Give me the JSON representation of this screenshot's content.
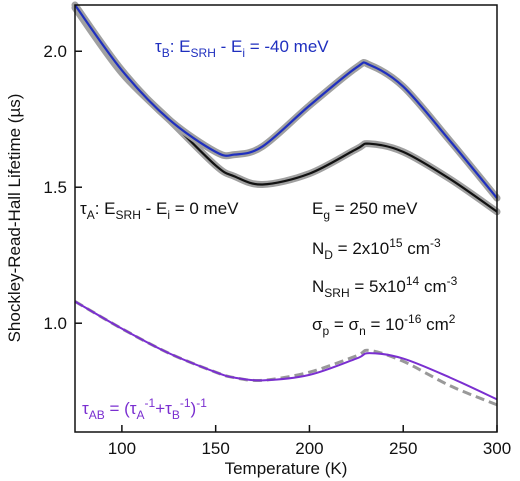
{
  "chart_data": {
    "type": "line",
    "xlabel": "Temperature (K)",
    "ylabel": "Shockley-Read-Hall Lifetime (µs)",
    "xlim": [
      75,
      300
    ],
    "ylim": [
      0.6,
      2.17
    ],
    "xticks": [
      100,
      150,
      200,
      250,
      300
    ],
    "yticks": [
      {
        "value": 1.0,
        "label": "1.0"
      },
      {
        "value": 1.5,
        "label": "1.5"
      },
      {
        "value": 2.0,
        "label": "2.0"
      }
    ],
    "x": [
      75,
      100,
      125,
      150,
      160,
      175,
      200,
      225,
      232,
      250,
      275,
      300
    ],
    "series": [
      {
        "color": "#999999",
        "dashed": true,
        "values": [
          1.08,
          0.98,
          0.89,
          0.82,
          0.8,
          0.79,
          0.82,
          0.88,
          0.9,
          0.86,
          0.77,
          0.7
        ]
      },
      {
        "color": "#7a2fd0",
        "values": [
          1.08,
          0.98,
          0.89,
          0.82,
          0.8,
          0.79,
          0.81,
          0.87,
          0.89,
          0.87,
          0.8,
          0.72
        ]
      },
      {
        "color": "#111111",
        "halo": true,
        "values": [
          2.16,
          1.92,
          1.75,
          1.58,
          1.54,
          1.51,
          1.55,
          1.64,
          1.66,
          1.63,
          1.53,
          1.41
        ]
      },
      {
        "color": "#1f2fbf",
        "halo": true,
        "values": [
          2.17,
          1.93,
          1.75,
          1.63,
          1.62,
          1.65,
          1.8,
          1.94,
          1.95,
          1.87,
          1.67,
          1.46
        ]
      }
    ],
    "annotations": [
      {
        "color": "#1f2fbf",
        "runs": [
          {
            "text": "τ",
            "pos": "base"
          },
          {
            "text": "B",
            "pos": "sub"
          },
          {
            "text": ": E",
            "pos": "base"
          },
          {
            "text": "SRH",
            "pos": "sub"
          },
          {
            "text": " - E",
            "pos": "base"
          },
          {
            "text": "i",
            "pos": "sub"
          },
          {
            "text": " = -40 meV",
            "pos": "base"
          }
        ]
      },
      {
        "color": "#111111",
        "runs": [
          {
            "text": "τ",
            "pos": "base"
          },
          {
            "text": "A",
            "pos": "sub"
          },
          {
            "text": ": E",
            "pos": "base"
          },
          {
            "text": "SRH",
            "pos": "sub"
          },
          {
            "text": " - E",
            "pos": "base"
          },
          {
            "text": "i",
            "pos": "sub"
          },
          {
            "text": " = 0 meV",
            "pos": "base"
          }
        ]
      },
      {
        "color": "#111111",
        "runs": [
          {
            "text": "E",
            "pos": "base"
          },
          {
            "text": "g",
            "pos": "sub"
          },
          {
            "text": " = 250 meV",
            "pos": "base"
          }
        ]
      },
      {
        "color": "#111111",
        "runs": [
          {
            "text": "N",
            "pos": "base"
          },
          {
            "text": "D",
            "pos": "sub"
          },
          {
            "text": " = 2x10",
            "pos": "base"
          },
          {
            "text": "15",
            "pos": "sup"
          },
          {
            "text": " cm",
            "pos": "base"
          },
          {
            "text": "-3",
            "pos": "sup"
          }
        ]
      },
      {
        "color": "#111111",
        "runs": [
          {
            "text": "N",
            "pos": "base"
          },
          {
            "text": "SRH",
            "pos": "sub"
          },
          {
            "text": " = 5x10",
            "pos": "base"
          },
          {
            "text": "14",
            "pos": "sup"
          },
          {
            "text": " cm",
            "pos": "base"
          },
          {
            "text": "-3",
            "pos": "sup"
          }
        ]
      },
      {
        "color": "#111111",
        "runs": [
          {
            "text": "σ",
            "pos": "base"
          },
          {
            "text": "p",
            "pos": "sub"
          },
          {
            "text": " = σ",
            "pos": "base"
          },
          {
            "text": "n",
            "pos": "sub"
          },
          {
            "text": " = 10",
            "pos": "base"
          },
          {
            "text": "-16",
            "pos": "sup"
          },
          {
            "text": " cm",
            "pos": "base"
          },
          {
            "text": "2",
            "pos": "sup"
          }
        ]
      },
      {
        "color": "#7a2fd0",
        "runs": [
          {
            "text": "τ",
            "pos": "base"
          },
          {
            "text": "AB",
            "pos": "sub"
          },
          {
            "text": " = (τ",
            "pos": "base"
          },
          {
            "text": "A",
            "pos": "sub"
          },
          {
            "text": "-1",
            "pos": "sup"
          },
          {
            "text": "+τ",
            "pos": "base"
          },
          {
            "text": "B",
            "pos": "sub"
          },
          {
            "text": "-1",
            "pos": "sup"
          },
          {
            "text": ")",
            "pos": "base"
          },
          {
            "text": "-1",
            "pos": "sup"
          }
        ]
      }
    ]
  }
}
